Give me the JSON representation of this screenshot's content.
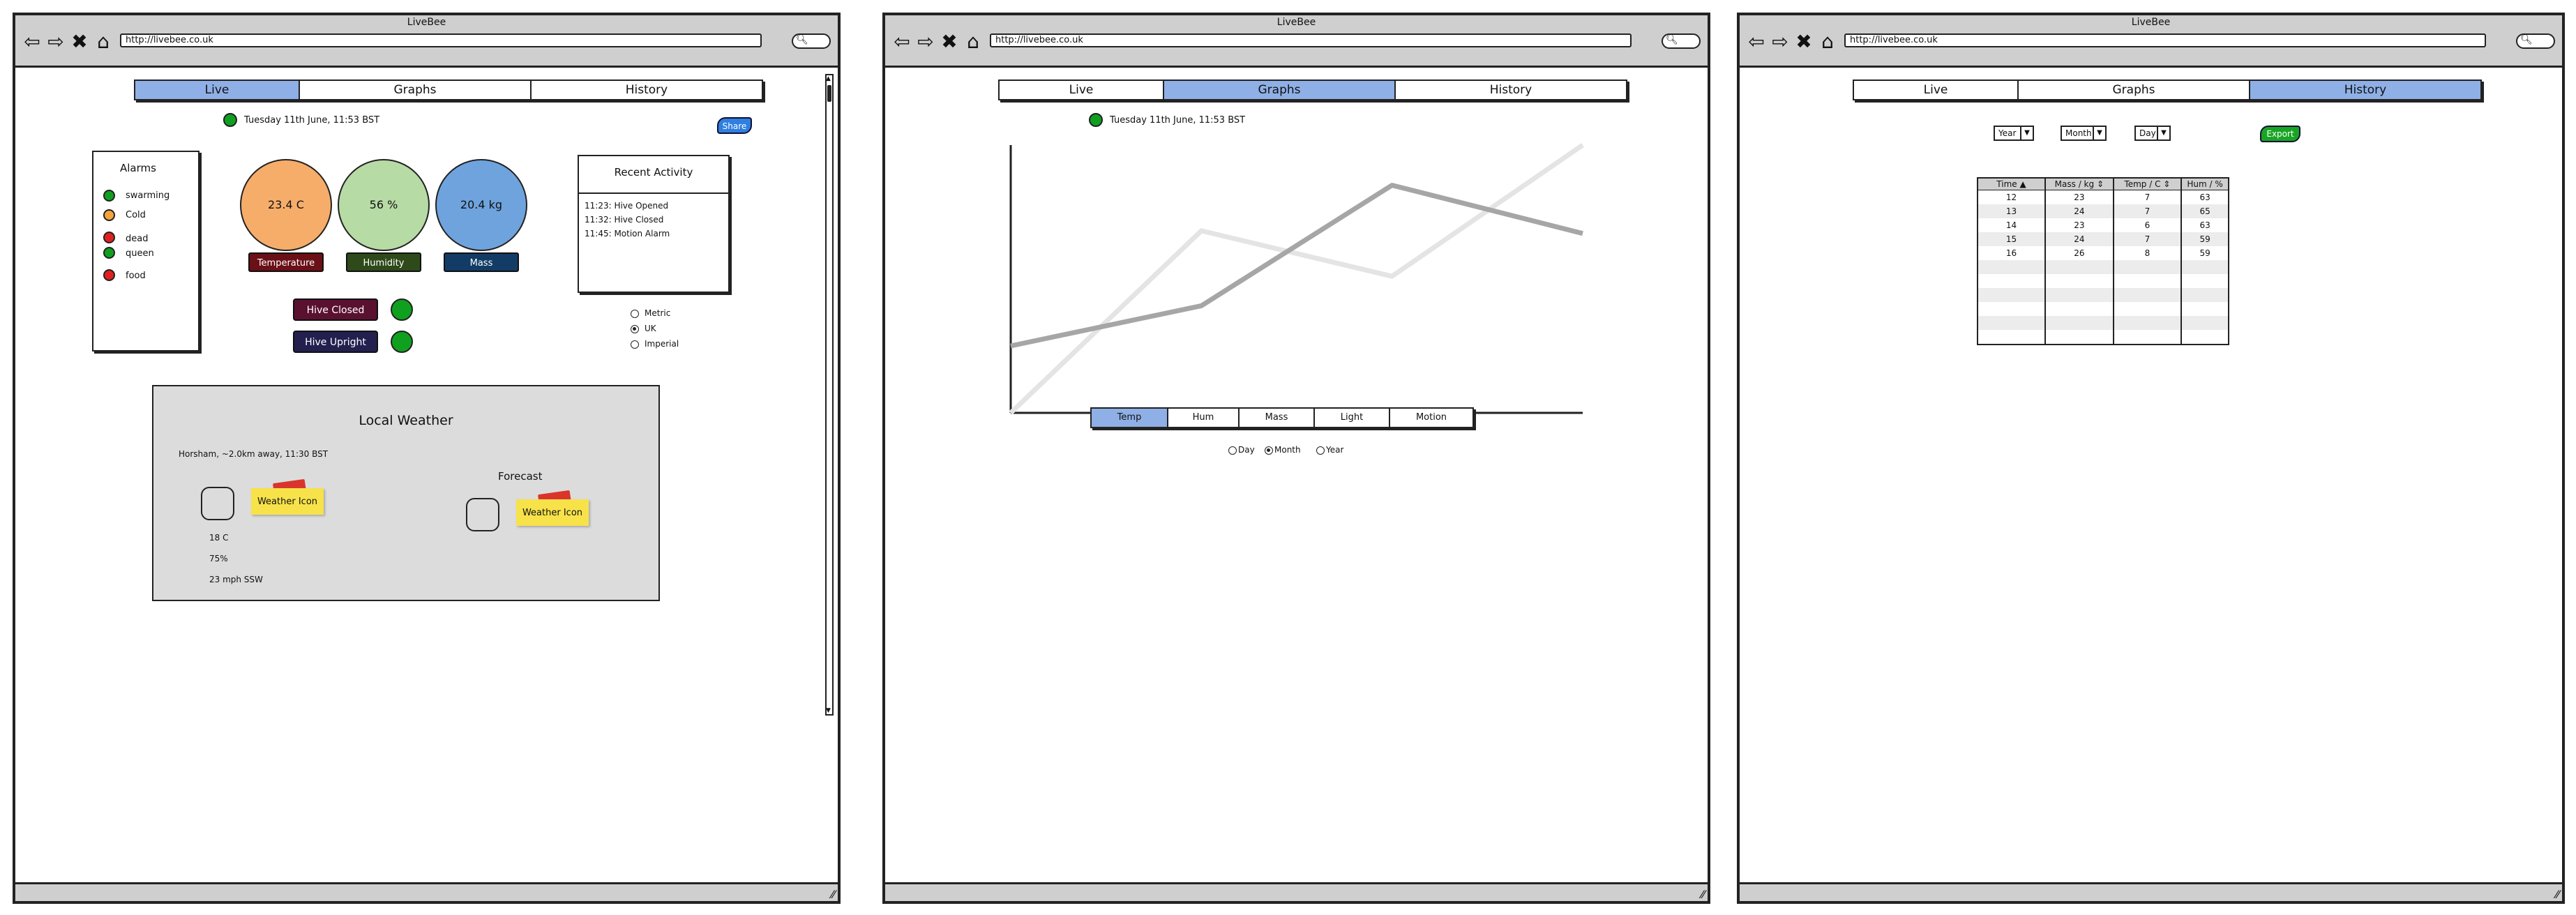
{
  "browser": {
    "title": "LiveBee",
    "url": "http://livebee.co.uk"
  },
  "tabs": [
    "Live",
    "Graphs",
    "History"
  ],
  "live": {
    "timestamp": "Tuesday 11th June, 11:53 BST",
    "share_label": "Share",
    "alarms": {
      "title": "Alarms",
      "items": [
        {
          "label": "swarming",
          "color": "#10a01f"
        },
        {
          "label": "Cold",
          "color": "#f5a43a"
        },
        {
          "label": "dead",
          "color": "#e02020"
        },
        {
          "label": "queen",
          "color": "#10a01f"
        },
        {
          "label": "food",
          "color": "#e02020"
        }
      ]
    },
    "gauges": [
      {
        "value": "23.4 C",
        "label": "Temperature",
        "fill": "#f6ad6a",
        "tag": "#6a1016"
      },
      {
        "value": "56 %",
        "label": "Humidity",
        "fill": "#b7dba5",
        "tag": "#2e4a1a"
      },
      {
        "value": "20.4 kg",
        "label": "Mass",
        "fill": "#6fa3dd",
        "tag": "#123c66"
      }
    ],
    "status": [
      {
        "label": "Hive Closed",
        "color": "#5a1130"
      },
      {
        "label": "Hive Upright",
        "color": "#23204f"
      }
    ],
    "recent": {
      "title": "Recent Activity",
      "items": [
        "11:23: Hive Opened",
        "11:32: Hive Closed",
        "11:45: Motion Alarm"
      ]
    },
    "units": {
      "options": [
        "Metric",
        "UK",
        "Imperial"
      ],
      "selected": "UK"
    },
    "weather": {
      "title": "Local Weather",
      "location": "Horsham, ~2.0km away, 11:30 BST",
      "forecast_title": "Forecast",
      "icon_label": "Weather Icon",
      "temp": "18 C",
      "humidity": "75%",
      "wind": "23 mph SSW"
    }
  },
  "graphs": {
    "timestamp": "Tuesday 11th June, 11:53 BST",
    "metric_tabs": [
      "Temp",
      "Hum",
      "Mass",
      "Light",
      "Motion"
    ],
    "active_metric": "Temp",
    "ranges": [
      "Day",
      "Month",
      "Year"
    ],
    "selected_range": "Month"
  },
  "history": {
    "filters": [
      "Year",
      "Month",
      "Day"
    ],
    "export_label": "Export",
    "columns": [
      "Time",
      "Mass / kg",
      "Temp / C",
      "Hum / %"
    ],
    "rows": [
      [
        "12",
        "23",
        "7",
        "63"
      ],
      [
        "13",
        "24",
        "7",
        "65"
      ],
      [
        "14",
        "23",
        "6",
        "63"
      ],
      [
        "15",
        "24",
        "7",
        "59"
      ],
      [
        "16",
        "26",
        "8",
        "59"
      ]
    ]
  },
  "chart_data": {
    "type": "line",
    "title": "",
    "xlabel": "",
    "ylabel": "",
    "x": [
      0,
      1,
      2,
      3
    ],
    "series": [
      {
        "values": [
          0.25,
          0.4,
          0.85,
          0.67
        ],
        "color": "#a6a6a6"
      },
      {
        "values": [
          0.0,
          0.68,
          0.51,
          1.0
        ],
        "color": "#e4e4e4"
      }
    ],
    "ylim": [
      0,
      1
    ],
    "grid": false
  }
}
